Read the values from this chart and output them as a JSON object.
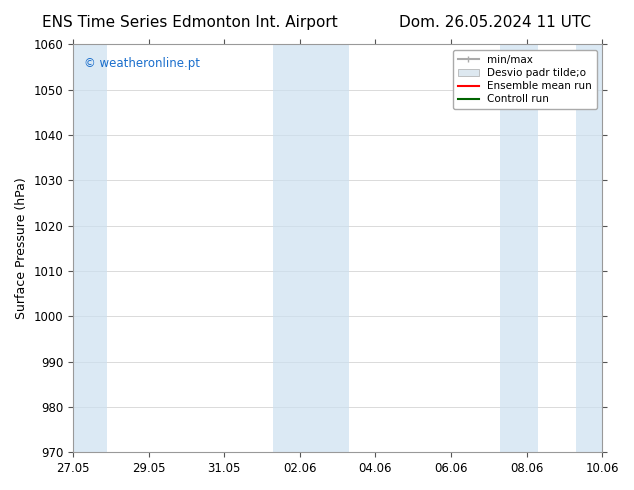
{
  "title_left": "ENS Time Series Edmonton Int. Airport",
  "title_right": "Dom. 26.05.2024 11 UTC",
  "ylabel": "Surface Pressure (hPa)",
  "ylim": [
    970,
    1060
  ],
  "yticks": [
    970,
    980,
    990,
    1000,
    1010,
    1020,
    1030,
    1040,
    1050,
    1060
  ],
  "xtick_labels": [
    "27.05",
    "29.05",
    "31.05",
    "02.06",
    "04.06",
    "06.06",
    "08.06",
    "10.06"
  ],
  "xtick_positions": [
    0,
    2,
    4,
    6,
    8,
    10,
    12,
    14
  ],
  "watermark": "© weatheronline.pt",
  "watermark_color": "#1a6ecc",
  "legend_entries": [
    "min/max",
    "Desvio padr tilde;o",
    "Ensemble mean run",
    "Controll run"
  ],
  "legend_colors": [
    "#b0b0b0",
    "#d0d8e8",
    "#ff0000",
    "#006400"
  ],
  "shaded_regions": [
    {
      "x_start": 0,
      "x_end": 0.8,
      "color": "#d4e6f5"
    },
    {
      "x_start": 5.5,
      "x_end": 7.5,
      "color": "#d4e6f5"
    },
    {
      "x_start": 11.5,
      "x_end": 12.5,
      "color": "#d4e6f5"
    },
    {
      "x_start": 13.5,
      "x_end": 14.2,
      "color": "#d4e6f5"
    }
  ],
  "bg_color": "#ffffff",
  "plot_bg_color": "#ffffff",
  "grid_color": "#cccccc",
  "tick_color": "#000000",
  "title_fontsize": 11,
  "label_fontsize": 9,
  "tick_fontsize": 8.5
}
